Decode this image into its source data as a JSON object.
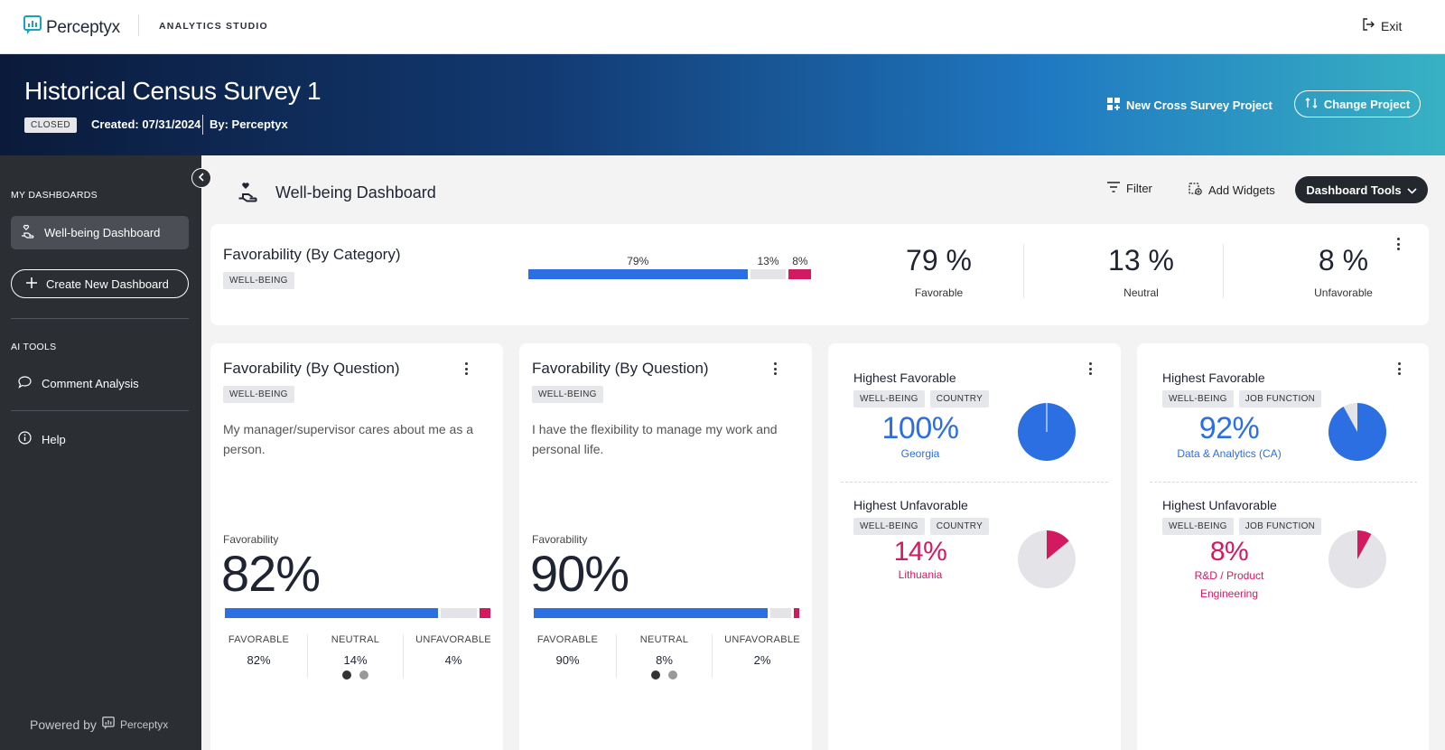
{
  "app": {
    "logo_text": "Perceptyx",
    "studio_label": "ANALYTICS STUDIO",
    "exit_label": "Exit"
  },
  "project": {
    "title": "Historical Census Survey 1",
    "status": "CLOSED",
    "created": "Created: 07/31/2024",
    "by": "By: Perceptyx",
    "new_cross_label": "New Cross Survey Project",
    "change_label": "Change Project"
  },
  "sidebar": {
    "my_dashboards_heading": "MY DASHBOARDS",
    "active_item": "Well-being Dashboard",
    "create_label": "Create New Dashboard",
    "ai_tools_heading": "AI TOOLS",
    "comment_label": "Comment Analysis",
    "help_label": "Help",
    "powered_by": "Powered by",
    "powered_brand": "Perceptyx"
  },
  "dashboard": {
    "title": "Well-being Dashboard",
    "filter_label": "Filter",
    "add_widgets_label": "Add Widgets",
    "tools_label": "Dashboard Tools"
  },
  "category_card": {
    "title": "Favorability (By Category)",
    "tag": "WELL-BEING",
    "bar": {
      "favorable": 79,
      "neutral": 13,
      "unfavorable": 8
    },
    "bar_labels": {
      "fav": "79%",
      "neu": "13%",
      "unf": "8%"
    },
    "stats": [
      {
        "value": "79 %",
        "label": "Favorable"
      },
      {
        "value": "13 %",
        "label": "Neutral"
      },
      {
        "value": "8 %",
        "label": "Unfavorable"
      }
    ]
  },
  "question_cards": [
    {
      "title": "Favorability (By Question)",
      "tag": "WELL-BEING",
      "question": "My manager/supervisor cares about me as a person.",
      "fav_label": "Favorability",
      "big_value": "82%",
      "bar": {
        "favorable": 82,
        "neutral": 14,
        "unfavorable": 4
      },
      "breakdown": [
        {
          "label": "FAVORABLE",
          "value": "82%"
        },
        {
          "label": "NEUTRAL",
          "value": "14%"
        },
        {
          "label": "UNFAVORABLE",
          "value": "4%"
        }
      ]
    },
    {
      "title": "Favorability (By Question)",
      "tag": "WELL-BEING",
      "question": "I have the flexibility to manage my work and personal life.",
      "fav_label": "Favorability",
      "big_value": "90%",
      "bar": {
        "favorable": 90,
        "neutral": 8,
        "unfavorable": 2
      },
      "breakdown": [
        {
          "label": "FAVORABLE",
          "value": "90%"
        },
        {
          "label": "NEUTRAL",
          "value": "8%"
        },
        {
          "label": "UNFAVORABLE",
          "value": "2%"
        }
      ]
    }
  ],
  "highlight_cards": [
    {
      "top": {
        "heading": "Highest Favorable",
        "tags": [
          "WELL-BEING",
          "COUNTRY"
        ],
        "value": "100%",
        "subject": "Georgia",
        "pct": 100
      },
      "bottom": {
        "heading": "Highest Unfavorable",
        "tags": [
          "WELL-BEING",
          "COUNTRY"
        ],
        "value": "14%",
        "subject": "Lithuania",
        "pct": 14
      }
    },
    {
      "top": {
        "heading": "Highest Favorable",
        "tags": [
          "WELL-BEING",
          "JOB FUNCTION"
        ],
        "value": "92%",
        "subject": "Data & Analytics (CA)",
        "pct": 92
      },
      "bottom": {
        "heading": "Highest Unfavorable",
        "tags": [
          "WELL-BEING",
          "JOB FUNCTION"
        ],
        "value": "8%",
        "subject": "R&D / Product",
        "subject2": "Engineering",
        "pct": 8
      }
    }
  ],
  "colors": {
    "favorable": "#2b6fe2",
    "neutral": "#e4e4e8",
    "unfavorable": "#d3195f"
  },
  "icons": [
    "logo-icon",
    "exit-icon",
    "grid-plus-icon",
    "swap-icon",
    "chevron-left-icon",
    "hand-heart-icon",
    "plus-icon",
    "chat-icon",
    "info-icon",
    "filter-icon",
    "add-widget-icon",
    "chevron-down-icon",
    "kebab-icon",
    "pie-chart-icon"
  ]
}
